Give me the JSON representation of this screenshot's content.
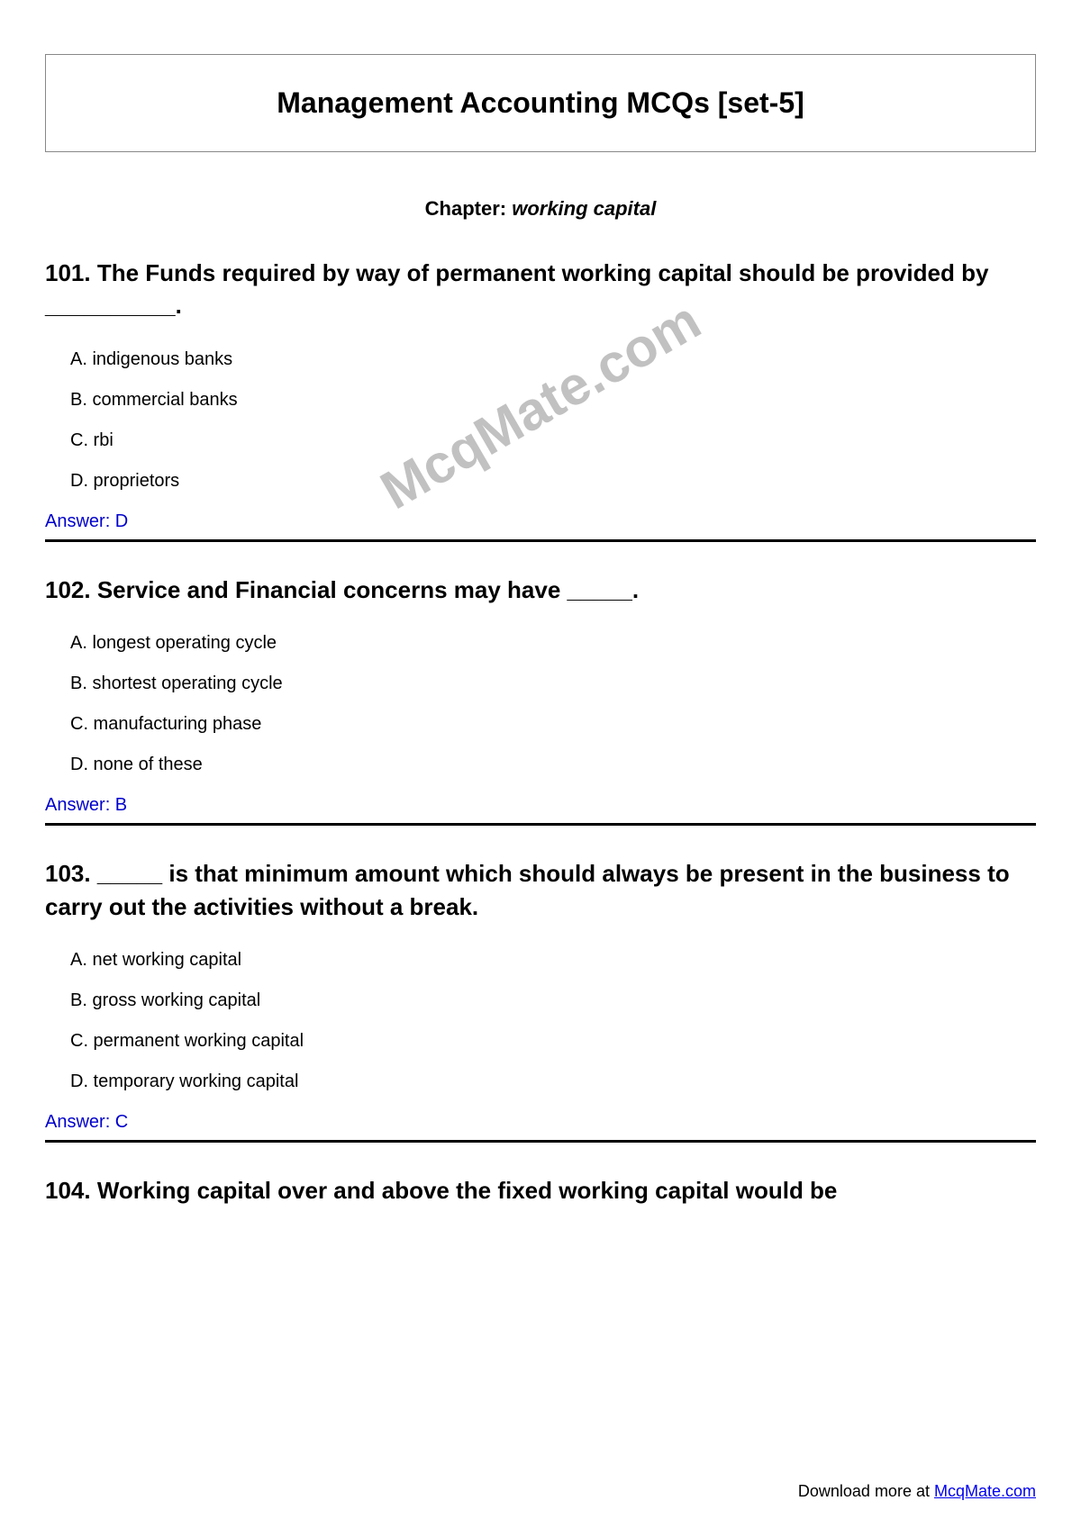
{
  "title": "Management Accounting MCQs [set-5]",
  "chapter": {
    "label": "Chapter: ",
    "name": "working capital"
  },
  "watermark": "McqMate.com",
  "questions": [
    {
      "number": "101",
      "text": "101. The Funds required by way of permanent working capital should be provided by __________.",
      "options": [
        "A. indigenous banks",
        "B. commercial banks",
        "C. rbi",
        "D. proprietors"
      ],
      "answer": "Answer: D"
    },
    {
      "number": "102",
      "text": "102. Service and Financial concerns may have _____.",
      "options": [
        "A. longest operating cycle",
        "B. shortest operating cycle",
        "C. manufacturing phase",
        "D. none of these"
      ],
      "answer": "Answer: B"
    },
    {
      "number": "103",
      "text": "103. _____ is that minimum amount which should always be present in the business to carry out the activities without a break.",
      "options": [
        "A. net working capital",
        "B. gross working capital",
        "C. permanent working capital",
        "D. temporary working capital"
      ],
      "answer": "Answer: C"
    },
    {
      "number": "104",
      "text": "104. Working capital over and above the fixed working capital would be",
      "options": [],
      "answer": ""
    }
  ],
  "footer": {
    "text": "Download more at ",
    "link": "McqMate.com"
  }
}
